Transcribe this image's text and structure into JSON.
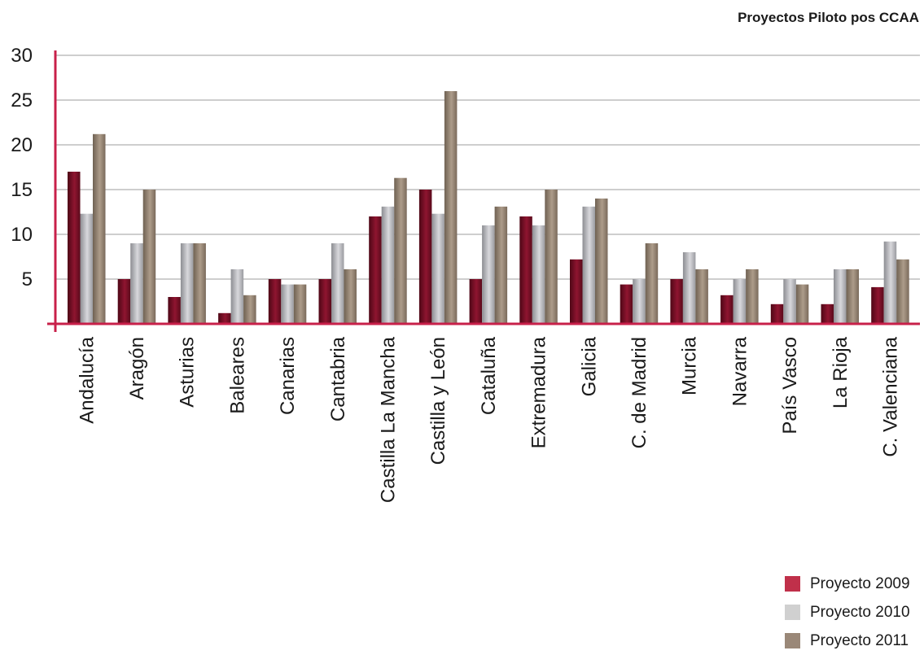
{
  "chart_data": {
    "type": "bar",
    "title": "Proyectos Piloto pos CCAA",
    "xlabel": "",
    "ylabel": "",
    "ylim": [
      0,
      30
    ],
    "yticks": [
      5,
      10,
      15,
      20,
      25,
      30
    ],
    "grid": true,
    "legend_position": "bottom-right",
    "categories": [
      "Andalucía",
      "Aragón",
      "Asturias",
      "Baleares",
      "Canarias",
      "Cantabria",
      "Castilla La Mancha",
      "Castilla y León",
      "Cataluña",
      "Extremadura",
      "Galicia",
      "C. de Madrid",
      "Murcia",
      "Navarra",
      "País Vasco",
      "La Rioja",
      "C. Valenciana"
    ],
    "series": [
      {
        "name": "Proyecto 2009",
        "color": "#7a0f24",
        "values": [
          17,
          5,
          3,
          1.2,
          5,
          5,
          12,
          15,
          5,
          12,
          7.2,
          4.4,
          5,
          3.2,
          2.2,
          2.2,
          4.1
        ]
      },
      {
        "name": "Proyecto 2010",
        "color": "#b8b8bc",
        "values": [
          12.3,
          9,
          9,
          6.1,
          4.4,
          9,
          13.1,
          12.3,
          11,
          11,
          13.1,
          5,
          8,
          5,
          5,
          6.1,
          9.2
        ]
      },
      {
        "name": "Proyecto 2011",
        "color": "#9a8878",
        "values": [
          21.2,
          15,
          9,
          3.2,
          4.4,
          6.1,
          16.3,
          26,
          13.1,
          15,
          14,
          9,
          6.1,
          6.1,
          4.4,
          6.1,
          7.2
        ]
      }
    ],
    "legend_swatch_colors": [
      "#c0304a",
      "#d0d0d0",
      "#9a8878"
    ],
    "axis_color": "#c8204a",
    "grid_color": "#b0b0b0"
  }
}
